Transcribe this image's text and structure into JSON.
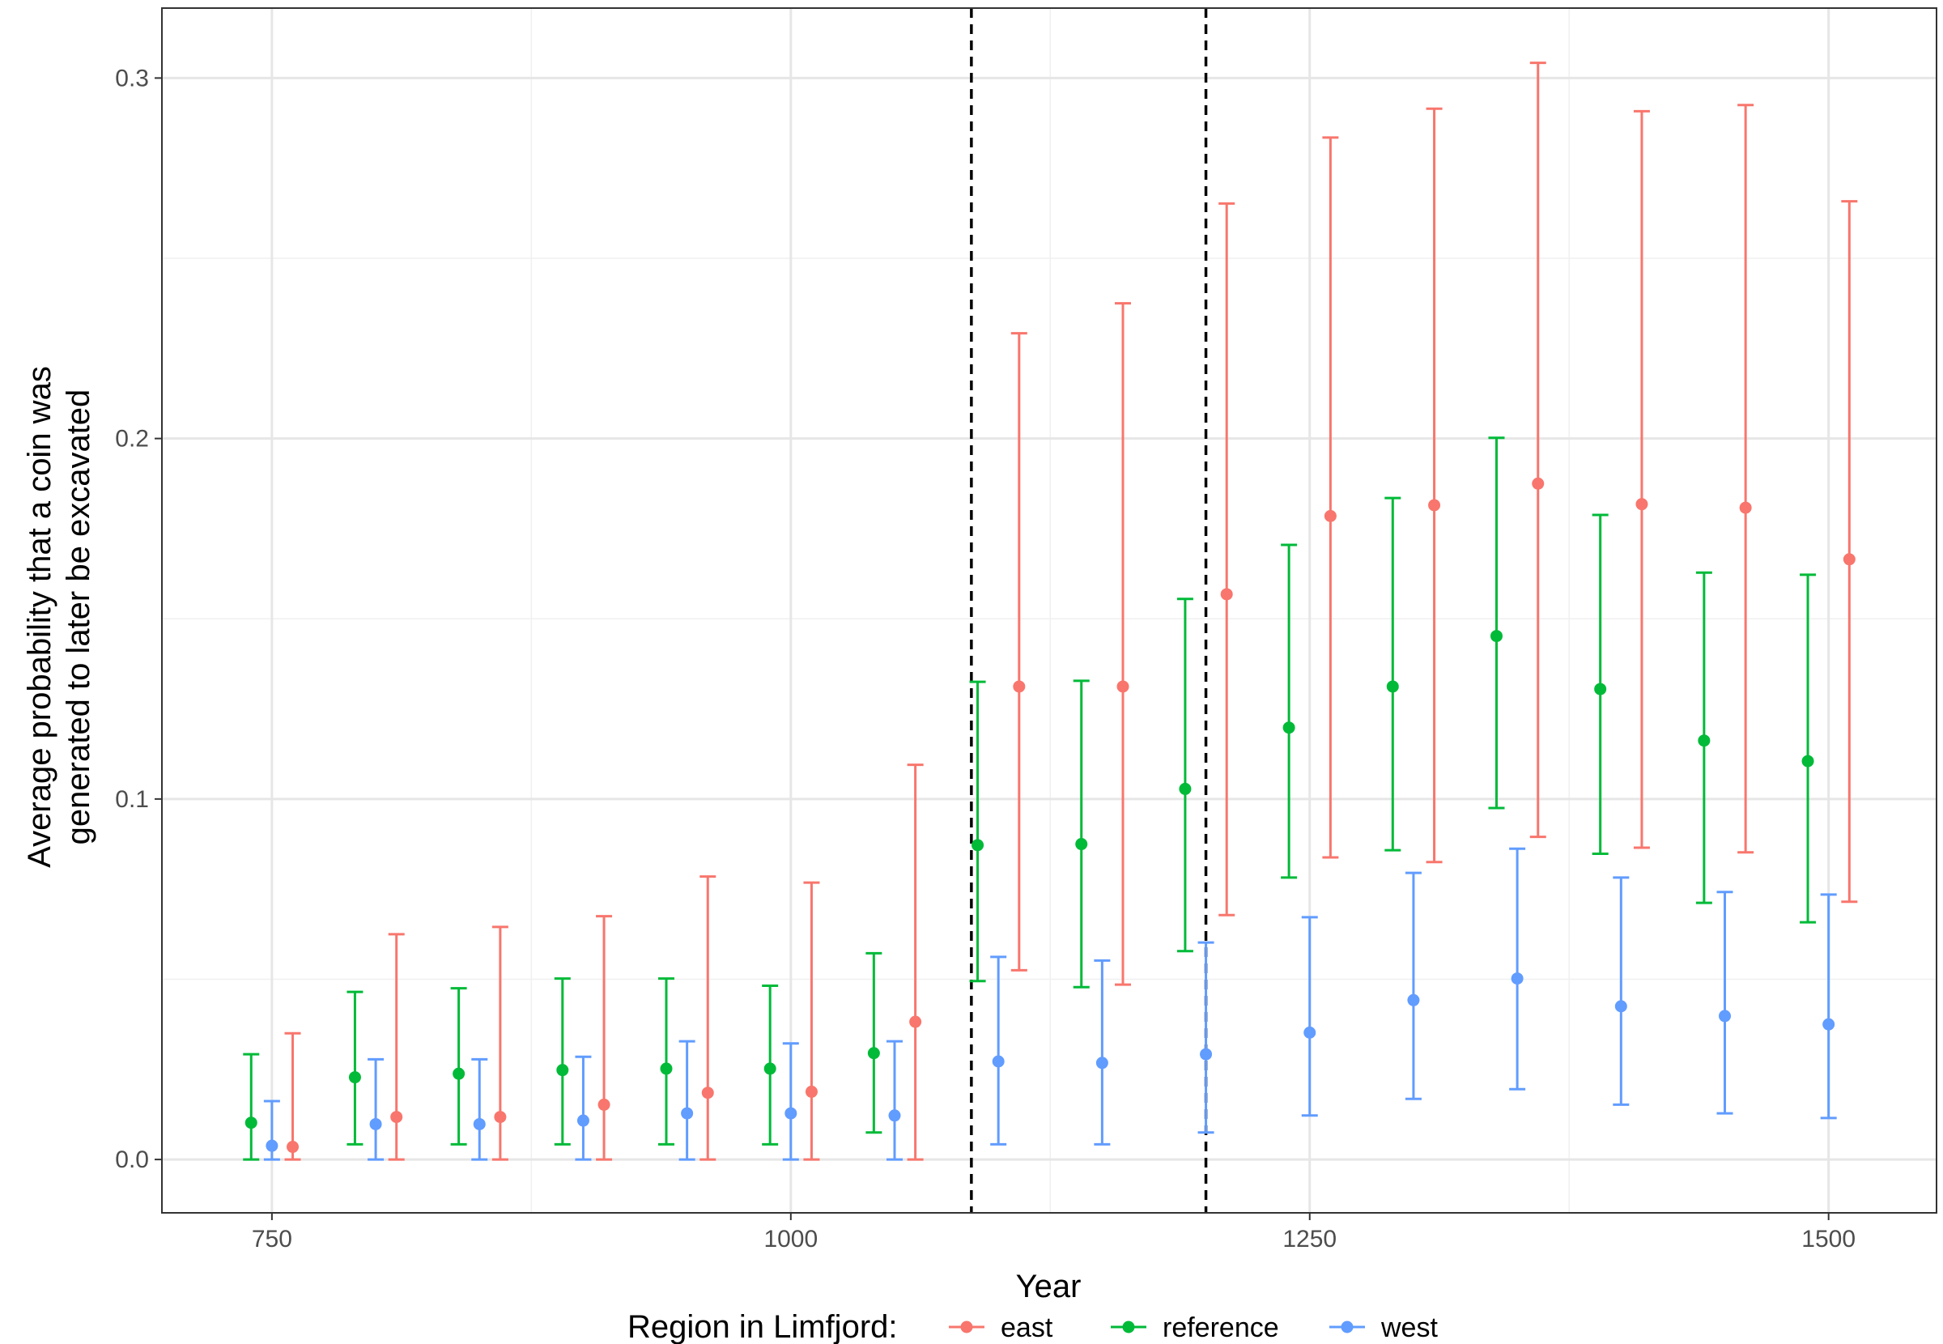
{
  "chart_data": {
    "type": "scatter",
    "title": "",
    "xlabel": "Year",
    "ylabel_lines": [
      "Average probability that a coin was",
      "generated to later be excavated"
    ],
    "xlim": [
      697,
      1552
    ],
    "ylim": [
      -0.0148,
      0.3194
    ],
    "xticks": [
      750,
      1000,
      1250,
      1500
    ],
    "xtick_labels": [
      "750",
      "1000",
      "1250",
      "1500"
    ],
    "yticks": [
      0.0,
      0.1,
      0.2,
      0.3
    ],
    "ytick_labels": [
      "0.0",
      "0.1",
      "0.2",
      "0.3"
    ],
    "y_minor_ticks": [
      0.05,
      0.15,
      0.25
    ],
    "x_minor_ticks": [
      875,
      1125,
      1375
    ],
    "grid": true,
    "vlines": [
      1087,
      1200
    ],
    "legend": {
      "position": "bottom",
      "title": "Region in Limfjord:",
      "entries": [
        "east",
        "reference",
        "west"
      ]
    },
    "series": [
      {
        "name": "east",
        "color": "#F8766D",
        "points": [
          {
            "x": 760,
            "y": 0.0035,
            "lo": 0.0,
            "hi": 0.035
          },
          {
            "x": 810,
            "y": 0.0118,
            "lo": 0.0,
            "hi": 0.0625
          },
          {
            "x": 860,
            "y": 0.0118,
            "lo": 0.0,
            "hi": 0.0645
          },
          {
            "x": 910,
            "y": 0.0152,
            "lo": 0.0,
            "hi": 0.0675
          },
          {
            "x": 960,
            "y": 0.0185,
            "lo": 0.0,
            "hi": 0.0785
          },
          {
            "x": 1010,
            "y": 0.0188,
            "lo": 0.0,
            "hi": 0.0768
          },
          {
            "x": 1060,
            "y": 0.0382,
            "lo": 0.0,
            "hi": 0.1095
          },
          {
            "x": 1110,
            "y": 0.1312,
            "lo": 0.0525,
            "hi": 0.2292
          },
          {
            "x": 1160,
            "y": 0.1312,
            "lo": 0.0485,
            "hi": 0.2375
          },
          {
            "x": 1210,
            "y": 0.1568,
            "lo": 0.0678,
            "hi": 0.2652
          },
          {
            "x": 1260,
            "y": 0.1785,
            "lo": 0.0838,
            "hi": 0.2835
          },
          {
            "x": 1310,
            "y": 0.1815,
            "lo": 0.0825,
            "hi": 0.2915
          },
          {
            "x": 1360,
            "y": 0.1875,
            "lo": 0.0895,
            "hi": 0.3042
          },
          {
            "x": 1410,
            "y": 0.1818,
            "lo": 0.0865,
            "hi": 0.2908
          },
          {
            "x": 1460,
            "y": 0.1808,
            "lo": 0.0852,
            "hi": 0.2925
          },
          {
            "x": 1510,
            "y": 0.1665,
            "lo": 0.0715,
            "hi": 0.2658
          }
        ]
      },
      {
        "name": "reference",
        "color": "#00BA38",
        "points": [
          {
            "x": 740,
            "y": 0.0102,
            "lo": 0.0,
            "hi": 0.0292
          },
          {
            "x": 790,
            "y": 0.0228,
            "lo": 0.0042,
            "hi": 0.0465
          },
          {
            "x": 840,
            "y": 0.0238,
            "lo": 0.0042,
            "hi": 0.0475
          },
          {
            "x": 890,
            "y": 0.0248,
            "lo": 0.0042,
            "hi": 0.0502
          },
          {
            "x": 940,
            "y": 0.0252,
            "lo": 0.0042,
            "hi": 0.0502
          },
          {
            "x": 990,
            "y": 0.0252,
            "lo": 0.0042,
            "hi": 0.0482
          },
          {
            "x": 1040,
            "y": 0.0295,
            "lo": 0.0075,
            "hi": 0.0572
          },
          {
            "x": 1090,
            "y": 0.0872,
            "lo": 0.0495,
            "hi": 0.1325
          },
          {
            "x": 1140,
            "y": 0.0875,
            "lo": 0.0478,
            "hi": 0.1328
          },
          {
            "x": 1190,
            "y": 0.1028,
            "lo": 0.0578,
            "hi": 0.1555
          },
          {
            "x": 1240,
            "y": 0.1198,
            "lo": 0.0782,
            "hi": 0.1705
          },
          {
            "x": 1290,
            "y": 0.1312,
            "lo": 0.0858,
            "hi": 0.1835
          },
          {
            "x": 1340,
            "y": 0.1452,
            "lo": 0.0975,
            "hi": 0.2002
          },
          {
            "x": 1390,
            "y": 0.1305,
            "lo": 0.0848,
            "hi": 0.1788
          },
          {
            "x": 1440,
            "y": 0.1162,
            "lo": 0.0712,
            "hi": 0.1628
          },
          {
            "x": 1490,
            "y": 0.1105,
            "lo": 0.0658,
            "hi": 0.1622
          }
        ]
      },
      {
        "name": "west",
        "color": "#619CFF",
        "points": [
          {
            "x": 750,
            "y": 0.0038,
            "lo": 0.0,
            "hi": 0.0162
          },
          {
            "x": 800,
            "y": 0.0098,
            "lo": 0.0,
            "hi": 0.0278
          },
          {
            "x": 850,
            "y": 0.0098,
            "lo": 0.0,
            "hi": 0.0278
          },
          {
            "x": 900,
            "y": 0.0108,
            "lo": 0.0,
            "hi": 0.0285
          },
          {
            "x": 950,
            "y": 0.0128,
            "lo": 0.0,
            "hi": 0.0328
          },
          {
            "x": 1000,
            "y": 0.0128,
            "lo": 0.0,
            "hi": 0.0322
          },
          {
            "x": 1050,
            "y": 0.0122,
            "lo": 0.0,
            "hi": 0.0328
          },
          {
            "x": 1100,
            "y": 0.0272,
            "lo": 0.0042,
            "hi": 0.0562
          },
          {
            "x": 1150,
            "y": 0.0268,
            "lo": 0.0042,
            "hi": 0.0552
          },
          {
            "x": 1200,
            "y": 0.0292,
            "lo": 0.0075,
            "hi": 0.0602
          },
          {
            "x": 1250,
            "y": 0.0352,
            "lo": 0.0122,
            "hi": 0.0672
          },
          {
            "x": 1300,
            "y": 0.0442,
            "lo": 0.0168,
            "hi": 0.0795
          },
          {
            "x": 1350,
            "y": 0.0502,
            "lo": 0.0195,
            "hi": 0.0862
          },
          {
            "x": 1400,
            "y": 0.0425,
            "lo": 0.0152,
            "hi": 0.0782
          },
          {
            "x": 1450,
            "y": 0.0398,
            "lo": 0.0128,
            "hi": 0.0742
          },
          {
            "x": 1500,
            "y": 0.0375,
            "lo": 0.0115,
            "hi": 0.0735
          }
        ]
      }
    ]
  }
}
